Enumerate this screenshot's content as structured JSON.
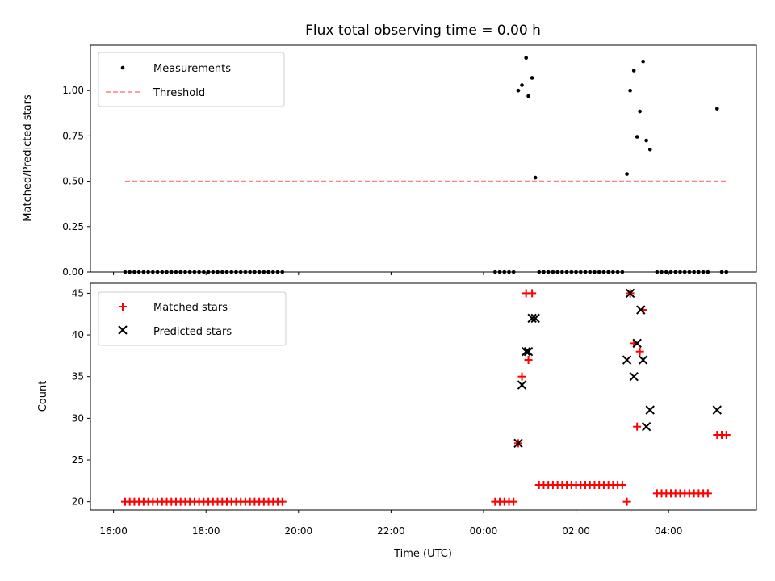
{
  "chart_data": [
    {
      "type": "scatter",
      "panel": "top",
      "title": "Flux total observing time = 0.00 h",
      "xlabel": "",
      "ylabel": "Matched/Predicted stars",
      "x_unit": "hours since 16:00 UTC",
      "xlim": [
        -0.5,
        13.9
      ],
      "ylim": [
        0,
        1.25
      ],
      "yticks": [
        0.0,
        0.25,
        0.5,
        0.75,
        1.0
      ],
      "ytick_labels": [
        "0.00",
        "0.25",
        "0.50",
        "0.75",
        "1.00"
      ],
      "xticks": [
        0,
        2,
        4,
        6,
        8,
        10,
        12
      ],
      "legend_position": "top-left",
      "series": [
        {
          "name": "Measurements",
          "marker": "dot",
          "color": "#000000",
          "points": [
            [
              8.75,
              1.0
            ],
            [
              8.83,
              1.03
            ],
            [
              8.92,
              1.18
            ],
            [
              8.97,
              0.97
            ],
            [
              9.05,
              1.07
            ],
            [
              9.12,
              0.52
            ],
            [
              11.1,
              0.54
            ],
            [
              11.17,
              1.0
            ],
            [
              11.25,
              1.11
            ],
            [
              11.32,
              0.745
            ],
            [
              11.38,
              0.885
            ],
            [
              11.45,
              1.16
            ],
            [
              11.52,
              0.725
            ],
            [
              11.6,
              0.675
            ],
            [
              13.05,
              0.9
            ]
          ],
          "zero_x": [
            0.25,
            0.35,
            0.45,
            0.55,
            0.65,
            0.75,
            0.85,
            0.95,
            1.05,
            1.15,
            1.25,
            1.35,
            1.45,
            1.55,
            1.65,
            1.75,
            1.85,
            1.95,
            2.05,
            2.15,
            2.25,
            2.35,
            2.45,
            2.55,
            2.65,
            2.75,
            2.85,
            2.95,
            3.05,
            3.15,
            3.25,
            3.35,
            3.45,
            3.55,
            3.65,
            8.25,
            8.35,
            8.45,
            8.55,
            8.65,
            9.2,
            9.3,
            9.4,
            9.5,
            9.6,
            9.7,
            9.8,
            9.9,
            10.0,
            10.1,
            10.2,
            10.3,
            10.4,
            10.5,
            10.6,
            10.7,
            10.8,
            10.9,
            11.0,
            11.75,
            11.85,
            11.95,
            12.05,
            12.15,
            12.25,
            12.35,
            12.45,
            12.55,
            12.65,
            12.75,
            12.85,
            13.15,
            13.25
          ]
        },
        {
          "name": "Threshold",
          "style": "dashed",
          "color": "#ff8080",
          "x": [
            0.25,
            13.25
          ],
          "y": [
            0.5,
            0.5
          ]
        }
      ]
    },
    {
      "type": "scatter",
      "panel": "bottom",
      "title": "",
      "xlabel": "Time (UTC)",
      "ylabel": "Count",
      "x_unit": "hours since 16:00 UTC",
      "xlim": [
        -0.5,
        13.9
      ],
      "ylim": [
        19,
        46.2
      ],
      "yticks": [
        20,
        25,
        30,
        35,
        40,
        45
      ],
      "ytick_labels": [
        "20",
        "25",
        "30",
        "35",
        "40",
        "45"
      ],
      "xticks": [
        0,
        2,
        4,
        6,
        8,
        10,
        12
      ],
      "xtick_labels": [
        "16:00",
        "18:00",
        "20:00",
        "22:00",
        "00:00",
        "02:00",
        "04:00"
      ],
      "legend_position": "top-left",
      "series": [
        {
          "name": "Matched stars",
          "marker": "plus",
          "color": "#ff0000",
          "points": [
            [
              0.25,
              20
            ],
            [
              0.35,
              20
            ],
            [
              0.45,
              20
            ],
            [
              0.55,
              20
            ],
            [
              0.65,
              20
            ],
            [
              0.75,
              20
            ],
            [
              0.85,
              20
            ],
            [
              0.95,
              20
            ],
            [
              1.05,
              20
            ],
            [
              1.15,
              20
            ],
            [
              1.25,
              20
            ],
            [
              1.35,
              20
            ],
            [
              1.45,
              20
            ],
            [
              1.55,
              20
            ],
            [
              1.65,
              20
            ],
            [
              1.75,
              20
            ],
            [
              1.85,
              20
            ],
            [
              1.95,
              20
            ],
            [
              2.05,
              20
            ],
            [
              2.15,
              20
            ],
            [
              2.25,
              20
            ],
            [
              2.35,
              20
            ],
            [
              2.45,
              20
            ],
            [
              2.55,
              20
            ],
            [
              2.65,
              20
            ],
            [
              2.75,
              20
            ],
            [
              2.85,
              20
            ],
            [
              2.95,
              20
            ],
            [
              3.05,
              20
            ],
            [
              3.15,
              20
            ],
            [
              3.25,
              20
            ],
            [
              3.35,
              20
            ],
            [
              3.45,
              20
            ],
            [
              3.55,
              20
            ],
            [
              3.65,
              20
            ],
            [
              8.25,
              20
            ],
            [
              8.35,
              20
            ],
            [
              8.45,
              20
            ],
            [
              8.55,
              20
            ],
            [
              8.65,
              20
            ],
            [
              8.75,
              27
            ],
            [
              8.83,
              35
            ],
            [
              8.92,
              45
            ],
            [
              8.97,
              37
            ],
            [
              9.05,
              45
            ],
            [
              9.2,
              22
            ],
            [
              9.3,
              22
            ],
            [
              9.4,
              22
            ],
            [
              9.5,
              22
            ],
            [
              9.6,
              22
            ],
            [
              9.7,
              22
            ],
            [
              9.8,
              22
            ],
            [
              9.9,
              22
            ],
            [
              10.0,
              22
            ],
            [
              10.1,
              22
            ],
            [
              10.2,
              22
            ],
            [
              10.3,
              22
            ],
            [
              10.4,
              22
            ],
            [
              10.5,
              22
            ],
            [
              10.6,
              22
            ],
            [
              10.7,
              22
            ],
            [
              10.8,
              22
            ],
            [
              10.9,
              22
            ],
            [
              11.0,
              22
            ],
            [
              11.1,
              20
            ],
            [
              11.17,
              45
            ],
            [
              11.25,
              39
            ],
            [
              11.32,
              29
            ],
            [
              11.38,
              38
            ],
            [
              11.45,
              43
            ],
            [
              11.75,
              21
            ],
            [
              11.85,
              21
            ],
            [
              11.95,
              21
            ],
            [
              12.05,
              21
            ],
            [
              12.15,
              21
            ],
            [
              12.25,
              21
            ],
            [
              12.35,
              21
            ],
            [
              12.45,
              21
            ],
            [
              12.55,
              21
            ],
            [
              12.65,
              21
            ],
            [
              12.75,
              21
            ],
            [
              12.85,
              21
            ],
            [
              13.05,
              28
            ],
            [
              13.15,
              28
            ],
            [
              13.25,
              28
            ]
          ]
        },
        {
          "name": "Predicted stars",
          "marker": "x",
          "color": "#000000",
          "points": [
            [
              8.75,
              27
            ],
            [
              8.83,
              34
            ],
            [
              8.92,
              38
            ],
            [
              8.97,
              38
            ],
            [
              9.05,
              42
            ],
            [
              9.12,
              42
            ],
            [
              11.1,
              37
            ],
            [
              11.17,
              45
            ],
            [
              11.25,
              35
            ],
            [
              11.32,
              39
            ],
            [
              11.4,
              43
            ],
            [
              11.45,
              37
            ],
            [
              11.52,
              29
            ],
            [
              11.6,
              31
            ],
            [
              13.05,
              31
            ]
          ]
        }
      ]
    }
  ]
}
